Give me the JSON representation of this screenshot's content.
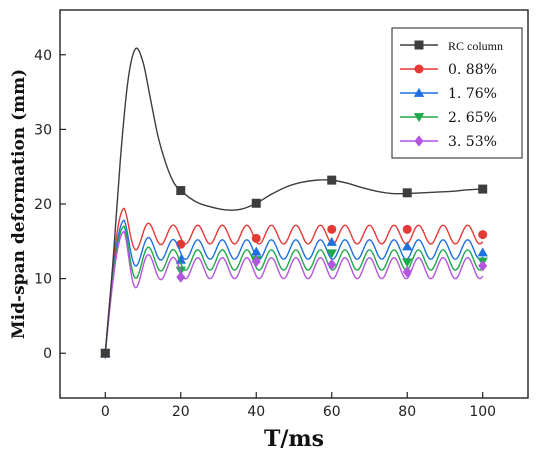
{
  "chart_data": {
    "type": "line",
    "xlabel": "T/ms",
    "ylabel": "Mid-span deformation (mm)",
    "xlim": [
      -12,
      112
    ],
    "ylim": [
      -6,
      46
    ],
    "x_ticks": [
      0,
      20,
      40,
      60,
      80,
      100
    ],
    "y_ticks": [
      0,
      10,
      20,
      30,
      40
    ],
    "grid": false,
    "legend_position": "top-right",
    "series": [
      {
        "name": "RC column",
        "color": "#3d3d3d",
        "marker": "square",
        "markers": [
          [
            0,
            0
          ],
          [
            20,
            21.8
          ],
          [
            40,
            20.1
          ],
          [
            60,
            23.2
          ],
          [
            80,
            21.5
          ],
          [
            100,
            22.0
          ]
        ],
        "curve": [
          [
            0,
            0
          ],
          [
            2,
            12
          ],
          [
            4,
            26
          ],
          [
            6,
            36.5
          ],
          [
            8,
            40.8
          ],
          [
            10,
            39
          ],
          [
            12,
            34
          ],
          [
            14,
            29
          ],
          [
            16,
            25.5
          ],
          [
            18,
            23
          ],
          [
            20,
            21.8
          ],
          [
            24,
            20.3
          ],
          [
            28,
            19.6
          ],
          [
            32,
            19.2
          ],
          [
            36,
            19.3
          ],
          [
            40,
            20.1
          ],
          [
            44,
            21.3
          ],
          [
            48,
            22.3
          ],
          [
            52,
            22.9
          ],
          [
            56,
            23.2
          ],
          [
            60,
            23.2
          ],
          [
            64,
            22.8
          ],
          [
            68,
            22.2
          ],
          [
            72,
            21.7
          ],
          [
            76,
            21.4
          ],
          [
            80,
            21.4
          ],
          [
            84,
            21.5
          ],
          [
            88,
            21.6
          ],
          [
            92,
            21.7
          ],
          [
            96,
            21.9
          ],
          [
            100,
            22.0
          ]
        ]
      },
      {
        "name": "0. 88%",
        "color": "#e53935",
        "marker": "circle",
        "markers": [
          [
            0,
            0
          ],
          [
            20,
            14.6
          ],
          [
            40,
            15.4
          ],
          [
            60,
            16.6
          ],
          [
            80,
            16.6
          ],
          [
            100,
            15.9
          ]
        ],
        "peak": [
          5,
          19.4
        ],
        "base": 15.9,
        "amp": 1.25,
        "period": 6.5
      },
      {
        "name": "1. 76%",
        "color": "#1e6fe0",
        "marker": "triangle",
        "markers": [
          [
            0,
            0
          ],
          [
            20,
            12.5
          ],
          [
            40,
            13.6
          ],
          [
            60,
            14.9
          ],
          [
            80,
            14.3
          ],
          [
            100,
            13.5
          ]
        ],
        "peak": [
          5,
          17.8
        ],
        "base": 13.9,
        "amp": 1.3,
        "period": 6.5
      },
      {
        "name": "2. 65%",
        "color": "#1ea84a",
        "marker": "triangle-down",
        "markers": [
          [
            0,
            0
          ],
          [
            20,
            11.1
          ],
          [
            40,
            12.5
          ],
          [
            60,
            13.4
          ],
          [
            80,
            12.2
          ],
          [
            100,
            12.3
          ]
        ],
        "peak": [
          5,
          17.0
        ],
        "base": 12.5,
        "amp": 1.35,
        "period": 6.5
      },
      {
        "name": "3. 53%",
        "color": "#b455e0",
        "marker": "diamond",
        "markers": [
          [
            0,
            0
          ],
          [
            20,
            10.2
          ],
          [
            40,
            12.3
          ],
          [
            60,
            11.9
          ],
          [
            80,
            10.9
          ],
          [
            100,
            11.7
          ]
        ],
        "peak": [
          5,
          16.3
        ],
        "base": 11.4,
        "amp": 1.4,
        "period": 6.5
      }
    ]
  }
}
